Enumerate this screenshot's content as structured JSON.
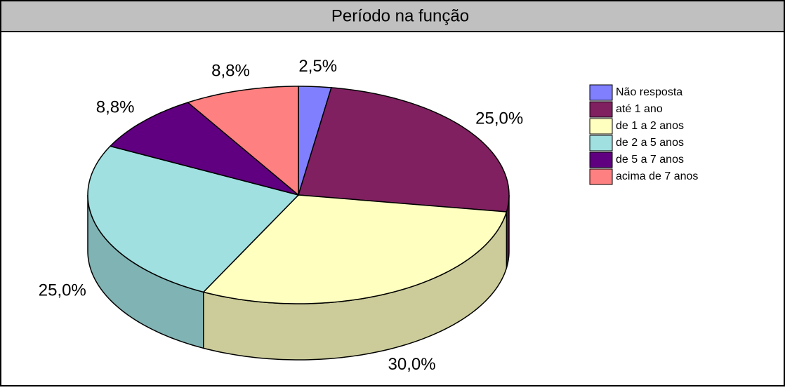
{
  "chart_data": {
    "type": "pie",
    "title": "Período na função",
    "categories": [
      "Não resposta",
      "até 1 ano",
      "de 1 a 2 anos",
      "de 2 a 5 anos",
      "de 5 a 7 anos",
      "acima de 7 anos"
    ],
    "values": [
      2.5,
      25,
      30,
      25,
      8.8,
      8.8
    ],
    "value_labels": [
      "2,5%",
      "25,0%",
      "30,0%",
      "25,0%",
      "8,8%",
      "8,8%"
    ],
    "colors": [
      "#8080ff",
      "#802060",
      "#ffffc0",
      "#a0e0e0",
      "#600080",
      "#ff8080"
    ],
    "legend": "right"
  }
}
